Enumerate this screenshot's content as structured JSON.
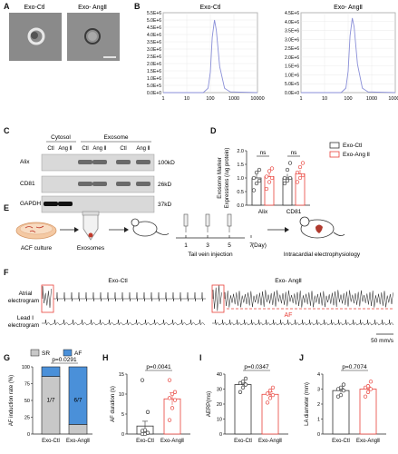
{
  "panels": {
    "a": "A",
    "b": "B",
    "c": "C",
    "d": "D",
    "e": "E",
    "f": "F",
    "g": "G",
    "h": "H",
    "i": "I",
    "j": "J"
  },
  "panel_a": {
    "label_ctl": "Exo-Ctl",
    "label_ang": "Exo- AngⅡ"
  },
  "panel_b": {
    "charts": [
      {
        "title": "Exo-Ctl",
        "yticks": [
          "5.5E+6",
          "5.0E+6",
          "4.5E+6",
          "4.0E+6",
          "3.5E+6",
          "3.0E+6",
          "2.5E+6",
          "2.0E+6",
          "1.5E+6",
          "1.0E+6",
          "5.0E+5",
          "0.0E+0"
        ],
        "xticks": [
          "1",
          "10",
          "100",
          "1000",
          "10000"
        ]
      },
      {
        "title": "Exo- AngⅡ",
        "yticks": [
          "4.5E+6",
          "4.0E+6",
          "3.5E+6",
          "3.0E+6",
          "2.5E+6",
          "2.0E+6",
          "1.5E+6",
          "1.0E+6",
          "5.0E+5",
          "0.0E+0"
        ],
        "xticks": [
          "1",
          "10",
          "100",
          "1000",
          "10000"
        ]
      }
    ]
  },
  "panel_c": {
    "group_cytosol": "Cytosol",
    "group_exosome": "Exosome",
    "lanes": [
      "Ctl",
      "Ang Ⅱ",
      "Ctl",
      "Ang Ⅱ",
      "Ctl",
      "Ang Ⅱ"
    ],
    "rows": [
      {
        "name": "Alix",
        "kd": "100kD"
      },
      {
        "name": "CD81",
        "kd": "26kD"
      },
      {
        "name": "GAPDH",
        "kd": "37kD"
      }
    ]
  },
  "panel_d": {
    "ylabel_line1": "Exosome Marker",
    "ylabel_line2": "Expressions (/ug protein)",
    "yticks": [
      "0.0",
      "0.5",
      "1.0",
      "1.5",
      "2.0"
    ],
    "groups": [
      "Alix",
      "CD81"
    ],
    "sig": [
      "ns",
      "ns"
    ],
    "legend": [
      "Exo-Ctl",
      "Exo-Ang Ⅱ"
    ]
  },
  "panel_e": {
    "step1": "ACF culture",
    "step2": "Exosomes",
    "step3": "Tail vein injection",
    "step4": "Intracardial electrophysiology",
    "timeline": [
      "1",
      "3",
      "5",
      "7"
    ],
    "day_label": "(Day)"
  },
  "panel_f": {
    "title_ctl": "Exo-Ctl",
    "title_ang": "Exo- AngⅡ",
    "row1_line1": "Atrial",
    "row1_line2": "electrogram",
    "row2_line1": "Lead Ⅰ",
    "row2_line2": "electrogram",
    "af_label": "AF",
    "scale": "50 mm/s"
  },
  "panel_g": {
    "ylabel": "AF induction rate (%)",
    "yticks": [
      "0",
      "25",
      "50",
      "75",
      "100"
    ],
    "legend": [
      "SR",
      "AF"
    ],
    "pvalue": "p=0.0291",
    "categories": [
      "Exo-Ctl",
      "Exo-AngⅡ"
    ],
    "fraction_labels": [
      "1/7",
      "6/7"
    ]
  },
  "panel_h": {
    "ylabel": "AF duration (s)",
    "yticks": [
      "0",
      "5",
      "10",
      "15"
    ],
    "pvalue": "p=0.0041",
    "categories": [
      "Exo-Ctl",
      "Exo-AngⅡ"
    ]
  },
  "panel_i": {
    "ylabel": "AERP(ms)",
    "yticks": [
      "0",
      "10",
      "20",
      "30",
      "40"
    ],
    "pvalue": "p=0.0347",
    "categories": [
      "Exo-Ctl",
      "Exo-AngⅡ"
    ]
  },
  "panel_j": {
    "ylabel": "LA diameter (mm)",
    "yticks": [
      "0",
      "1",
      "2",
      "3",
      "4"
    ],
    "pvalue": "p=0.7074",
    "categories": [
      "Exo-Ctl",
      "Exo-AngⅡ"
    ]
  },
  "colors": {
    "ctl": "#333333",
    "ang": "#e8413a",
    "af_blue": "#4a90d9",
    "sr_gray": "#c8c8c8",
    "curve": "#8a8fd8"
  },
  "chart_data": [
    {
      "type": "line",
      "panel": "B-left",
      "title": "Exo-Ctl",
      "x_scale": "log",
      "xlim": [
        1,
        10000
      ],
      "ylim": [
        0,
        5500000
      ],
      "peak": {
        "x": 150,
        "y": 5000000
      },
      "x": [
        1,
        50,
        80,
        100,
        120,
        150,
        180,
        250,
        400,
        700,
        10000
      ],
      "y": [
        0,
        0,
        300000,
        1400000,
        3800000,
        5000000,
        4300000,
        1800000,
        300000,
        50000,
        0
      ]
    },
    {
      "type": "line",
      "panel": "B-right",
      "title": "Exo- AngⅡ",
      "x_scale": "log",
      "xlim": [
        1,
        10000
      ],
      "ylim": [
        0,
        4500000
      ],
      "peak": {
        "x": 150,
        "y": 4200000
      },
      "x": [
        1,
        50,
        80,
        100,
        120,
        150,
        180,
        250,
        400,
        700,
        10000
      ],
      "y": [
        0,
        0,
        250000,
        1200000,
        3200000,
        4200000,
        3700000,
        1600000,
        250000,
        40000,
        0
      ]
    },
    {
      "type": "bar",
      "panel": "D",
      "categories": [
        "Alix",
        "CD81"
      ],
      "ylim": [
        0,
        2.0
      ],
      "series": [
        {
          "name": "Exo-Ctl",
          "values": [
            1.0,
            1.0
          ],
          "points": [
            [
              0.55,
              0.8,
              0.9,
              1.0,
              1.2,
              1.3
            ],
            [
              0.8,
              0.9,
              1.0,
              1.0,
              1.3,
              1.55
            ]
          ]
        },
        {
          "name": "Exo-Ang Ⅱ",
          "values": [
            1.05,
            1.15
          ],
          "points": [
            [
              0.6,
              0.85,
              1.0,
              1.05,
              1.25,
              1.35
            ],
            [
              0.85,
              1.0,
              1.1,
              1.2,
              1.4,
              1.55
            ]
          ]
        }
      ]
    },
    {
      "type": "bar",
      "panel": "G",
      "stacked": true,
      "categories": [
        "Exo-Ctl",
        "Exo-AngⅡ"
      ],
      "ylim": [
        0,
        100
      ],
      "series": [
        {
          "name": "SR",
          "values": [
            85.7,
            14.3
          ]
        },
        {
          "name": "AF",
          "values": [
            14.3,
            85.7
          ]
        }
      ]
    },
    {
      "type": "bar",
      "panel": "H",
      "categories": [
        "Exo-Ctl",
        "Exo-AngⅡ"
      ],
      "ylim": [
        0,
        15
      ],
      "values": [
        2.0,
        8.8
      ],
      "sem": [
        1.2,
        1.5
      ],
      "points": [
        [
          0,
          0,
          0.3,
          0.8,
          1.0,
          5.5,
          13.5
        ],
        [
          3.5,
          6.5,
          8.5,
          9.0,
          10.0,
          10.5,
          13.5
        ]
      ]
    },
    {
      "type": "bar",
      "panel": "I",
      "categories": [
        "Exo-Ctl",
        "Exo-AngⅡ"
      ],
      "ylim": [
        0,
        40
      ],
      "values": [
        33,
        26.5
      ],
      "sem": [
        1.5,
        1.5
      ],
      "points": [
        [
          28,
          31,
          33,
          34,
          35,
          37
        ],
        [
          21,
          24,
          26,
          27,
          29,
          31
        ]
      ]
    },
    {
      "type": "bar",
      "panel": "J",
      "categories": [
        "Exo-Ctl",
        "Exo-AngⅡ"
      ],
      "ylim": [
        0,
        4
      ],
      "values": [
        2.9,
        3.0
      ],
      "sem": [
        0.15,
        0.15
      ],
      "points": [
        [
          2.5,
          2.6,
          2.9,
          3.0,
          3.1,
          3.3
        ],
        [
          2.5,
          2.8,
          3.0,
          3.1,
          3.2,
          3.5
        ]
      ]
    }
  ]
}
